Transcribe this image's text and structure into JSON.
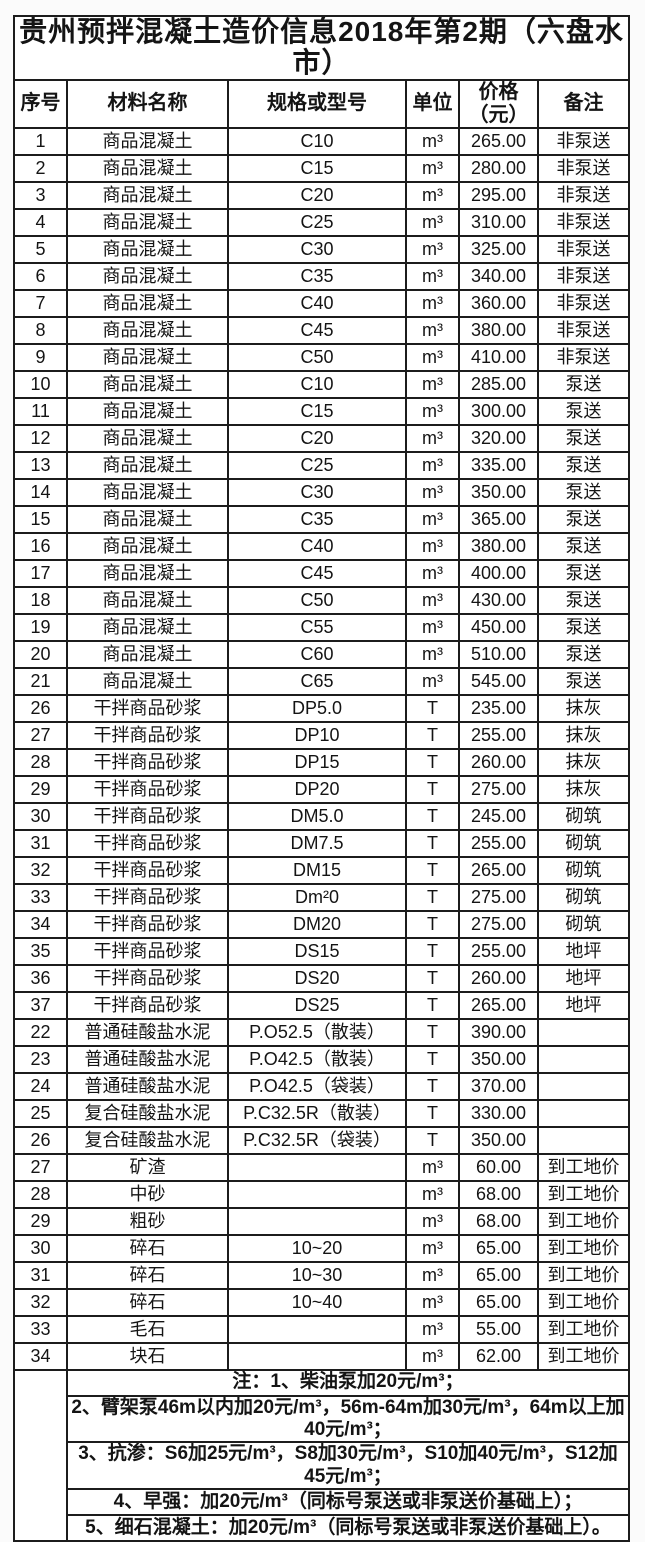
{
  "title": "贵州预拌混凝土造价信息2018年第2期（六盘水市）",
  "table": {
    "headers": [
      "序号",
      "材料名称",
      "规格或型号",
      "单位",
      "价格\n（元）",
      "备注"
    ],
    "rows": [
      [
        "1",
        "商品混凝土",
        "C10",
        "m³",
        "265.00",
        "非泵送"
      ],
      [
        "2",
        "商品混凝土",
        "C15",
        "m³",
        "280.00",
        "非泵送"
      ],
      [
        "3",
        "商品混凝土",
        "C20",
        "m³",
        "295.00",
        "非泵送"
      ],
      [
        "4",
        "商品混凝土",
        "C25",
        "m³",
        "310.00",
        "非泵送"
      ],
      [
        "5",
        "商品混凝土",
        "C30",
        "m³",
        "325.00",
        "非泵送"
      ],
      [
        "6",
        "商品混凝土",
        "C35",
        "m³",
        "340.00",
        "非泵送"
      ],
      [
        "7",
        "商品混凝土",
        "C40",
        "m³",
        "360.00",
        "非泵送"
      ],
      [
        "8",
        "商品混凝土",
        "C45",
        "m³",
        "380.00",
        "非泵送"
      ],
      [
        "9",
        "商品混凝土",
        "C50",
        "m³",
        "410.00",
        "非泵送"
      ],
      [
        "10",
        "商品混凝土",
        "C10",
        "m³",
        "285.00",
        "泵送"
      ],
      [
        "11",
        "商品混凝土",
        "C15",
        "m³",
        "300.00",
        "泵送"
      ],
      [
        "12",
        "商品混凝土",
        "C20",
        "m³",
        "320.00",
        "泵送"
      ],
      [
        "13",
        "商品混凝土",
        "C25",
        "m³",
        "335.00",
        "泵送"
      ],
      [
        "14",
        "商品混凝土",
        "C30",
        "m³",
        "350.00",
        "泵送"
      ],
      [
        "15",
        "商品混凝土",
        "C35",
        "m³",
        "365.00",
        "泵送"
      ],
      [
        "16",
        "商品混凝土",
        "C40",
        "m³",
        "380.00",
        "泵送"
      ],
      [
        "17",
        "商品混凝土",
        "C45",
        "m³",
        "400.00",
        "泵送"
      ],
      [
        "18",
        "商品混凝土",
        "C50",
        "m³",
        "430.00",
        "泵送"
      ],
      [
        "19",
        "商品混凝土",
        "C55",
        "m³",
        "450.00",
        "泵送"
      ],
      [
        "20",
        "商品混凝土",
        "C60",
        "m³",
        "510.00",
        "泵送"
      ],
      [
        "21",
        "商品混凝土",
        "C65",
        "m³",
        "545.00",
        "泵送"
      ],
      [
        "26",
        "干拌商品砂浆",
        "DP5.0",
        "T",
        "235.00",
        "抹灰"
      ],
      [
        "27",
        "干拌商品砂浆",
        "DP10",
        "T",
        "255.00",
        "抹灰"
      ],
      [
        "28",
        "干拌商品砂浆",
        "DP15",
        "T",
        "260.00",
        "抹灰"
      ],
      [
        "29",
        "干拌商品砂浆",
        "DP20",
        "T",
        "275.00",
        "抹灰"
      ],
      [
        "30",
        "干拌商品砂浆",
        "DM5.0",
        "T",
        "245.00",
        "砌筑"
      ],
      [
        "31",
        "干拌商品砂浆",
        "DM7.5",
        "T",
        "255.00",
        "砌筑"
      ],
      [
        "32",
        "干拌商品砂浆",
        "DM15",
        "T",
        "265.00",
        "砌筑"
      ],
      [
        "33",
        "干拌商品砂浆",
        "Dm²0",
        "T",
        "275.00",
        "砌筑"
      ],
      [
        "34",
        "干拌商品砂浆",
        "DM20",
        "T",
        "275.00",
        "砌筑"
      ],
      [
        "35",
        "干拌商品砂浆",
        "DS15",
        "T",
        "255.00",
        "地坪"
      ],
      [
        "36",
        "干拌商品砂浆",
        "DS20",
        "T",
        "260.00",
        "地坪"
      ],
      [
        "37",
        "干拌商品砂浆",
        "DS25",
        "T",
        "265.00",
        "地坪"
      ],
      [
        "22",
        "普通硅酸盐水泥",
        "P.O52.5（散装）",
        "T",
        "390.00",
        ""
      ],
      [
        "23",
        "普通硅酸盐水泥",
        "P.O42.5（散装）",
        "T",
        "350.00",
        ""
      ],
      [
        "24",
        "普通硅酸盐水泥",
        "P.O42.5（袋装）",
        "T",
        "370.00",
        ""
      ],
      [
        "25",
        "复合硅酸盐水泥",
        "P.C32.5R（散装）",
        "T",
        "330.00",
        ""
      ],
      [
        "26",
        "复合硅酸盐水泥",
        "P.C32.5R（袋装）",
        "T",
        "350.00",
        ""
      ],
      [
        "27",
        "矿渣",
        "",
        "m³",
        "60.00",
        "到工地价"
      ],
      [
        "28",
        "中砂",
        "",
        "m³",
        "68.00",
        "到工地价"
      ],
      [
        "29",
        "粗砂",
        "",
        "m³",
        "68.00",
        "到工地价"
      ],
      [
        "30",
        "碎石",
        "10~20",
        "m³",
        "65.00",
        "到工地价"
      ],
      [
        "31",
        "碎石",
        "10~30",
        "m³",
        "65.00",
        "到工地价"
      ],
      [
        "32",
        "碎石",
        "10~40",
        "m³",
        "65.00",
        "到工地价"
      ],
      [
        "33",
        "毛石",
        "",
        "m³",
        "55.00",
        "到工地价"
      ],
      [
        "34",
        "块石",
        "",
        "m³",
        "62.00",
        "到工地价"
      ]
    ],
    "notes": [
      "注：1、柴油泵加20元/m³；",
      "2、臂架泵46m以内加20元/m³，56m-64m加30元/m³，64m以上加40元/m³；",
      "3、抗渗：S6加25元/m³，S8加30元/m³，S10加40元/m³，S12加45元/m³；",
      "4、早强：加20元/m³（同标号泵送或非泵送价基础上）；",
      "5、细石混凝土：加20元/m³（同标号泵送或非泵送价基础上）。"
    ]
  },
  "colors": {
    "border": "#1c1c1c",
    "background": "#fbfbfb",
    "text": "#141414"
  }
}
